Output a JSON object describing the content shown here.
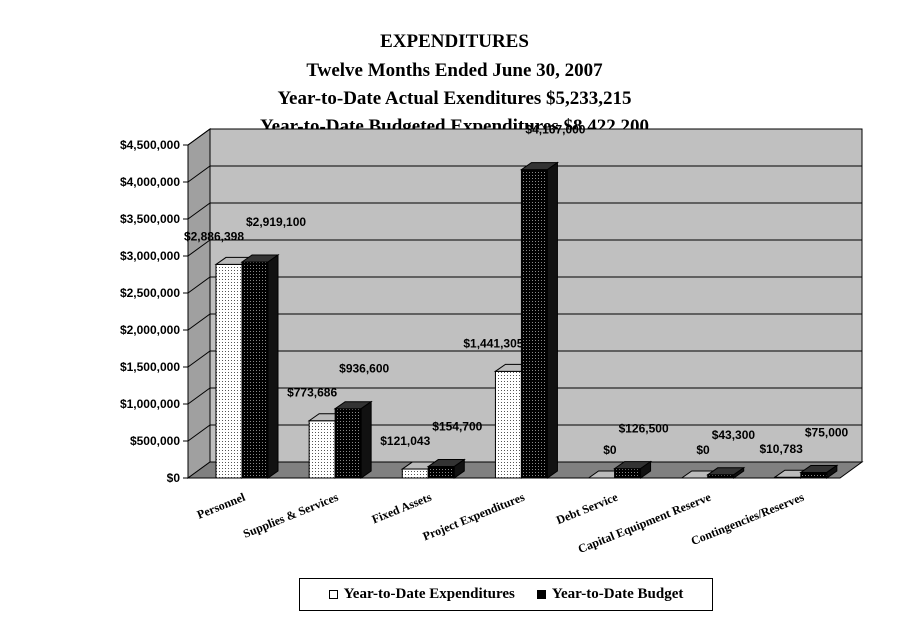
{
  "titles": {
    "line1": "EXPENDITURES",
    "line2": "Twelve Months Ended June 30, 2007",
    "line3": "Year-to-Date Actual Exenditures $5,233,215",
    "line4": "Year-to-Date Budgeted Expenditures $8,422,200"
  },
  "colors": {
    "wall": "#c0c0c0",
    "floor": "#808080",
    "actual_fill": "#ffffff",
    "budget_fill": "#000000"
  },
  "legend": {
    "actual_label": "Year-to-Date Expenditures",
    "budget_label": "Year-to-Date Budget"
  },
  "chart_data": {
    "type": "bar",
    "style": "3d-clustered",
    "categories": [
      "Personnel",
      "Supplies & Services",
      "Fixed Assets",
      "Project Expenditures",
      "Debt Service",
      "Capital Equipment Reserve",
      "Contingencies/Reserves"
    ],
    "series": [
      {
        "name": "Year-to-Date Expenditures",
        "values": [
          2886398,
          773686,
          121043,
          1441305,
          0,
          0,
          10783
        ],
        "labels": [
          "$2,886,398",
          "$773,686",
          "$121,043",
          "$1,441,305",
          "$0",
          "$0",
          "$10,783"
        ]
      },
      {
        "name": "Year-to-Date Budget",
        "values": [
          2919100,
          936600,
          154700,
          4167000,
          126500,
          43300,
          75000
        ],
        "labels": [
          "$2,919,100",
          "$936,600",
          "$154,700",
          "$4,167,000",
          "$126,500",
          "$43,300",
          "$75,000"
        ]
      }
    ],
    "y_ticks": [
      "$0",
      "$500,000",
      "$1,000,000",
      "$1,500,000",
      "$2,000,000",
      "$2,500,000",
      "$3,000,000",
      "$3,500,000",
      "$4,000,000",
      "$4,500,000"
    ],
    "ylim": [
      0,
      4500000
    ],
    "grid": true,
    "legend_position": "bottom"
  }
}
